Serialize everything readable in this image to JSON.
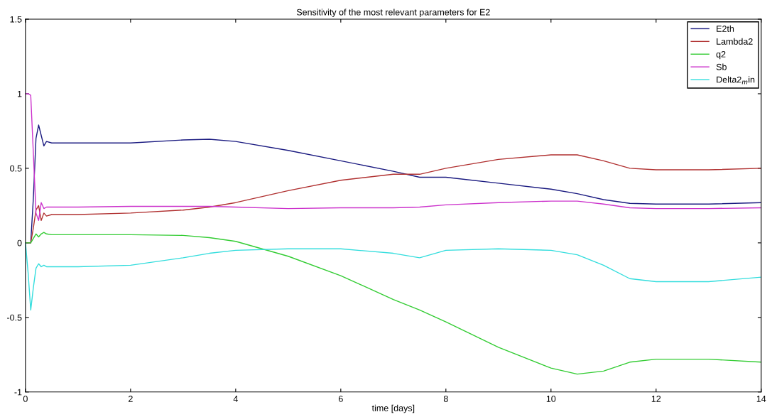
{
  "chart_data": {
    "type": "line",
    "title": "Sensitivity of the most relevant parameters for E2",
    "xlabel": "time [days]",
    "x": [
      0,
      0.05,
      0.1,
      0.15,
      0.2,
      0.25,
      0.3,
      0.35,
      0.4,
      0.5,
      1,
      2,
      3,
      3.5,
      4,
      5,
      6,
      7,
      7.5,
      8,
      9,
      10,
      10.5,
      11,
      11.5,
      12,
      13,
      14
    ],
    "series": [
      {
        "name": "E2th",
        "color": "#1a1a80",
        "values": [
          0,
          0,
          0,
          0.3,
          0.7,
          0.79,
          0.72,
          0.65,
          0.68,
          0.67,
          0.67,
          0.67,
          0.69,
          0.695,
          0.68,
          0.62,
          0.55,
          0.48,
          0.44,
          0.44,
          0.4,
          0.36,
          0.33,
          0.29,
          0.265,
          0.26,
          0.26,
          0.27
        ]
      },
      {
        "name": "Lambda2",
        "color": "#b03030",
        "values": [
          0,
          0,
          0,
          0.1,
          0.22,
          0.25,
          0.15,
          0.2,
          0.18,
          0.19,
          0.19,
          0.2,
          0.22,
          0.24,
          0.27,
          0.35,
          0.42,
          0.46,
          0.46,
          0.5,
          0.56,
          0.59,
          0.59,
          0.55,
          0.5,
          0.49,
          0.49,
          0.5
        ]
      },
      {
        "name": "q2",
        "color": "#33cc33",
        "values": [
          0,
          0,
          0,
          0.03,
          0.06,
          0.04,
          0.06,
          0.07,
          0.06,
          0.055,
          0.055,
          0.055,
          0.05,
          0.035,
          0.01,
          -0.09,
          -0.22,
          -0.38,
          -0.45,
          -0.53,
          -0.7,
          -0.84,
          -0.88,
          -0.86,
          -0.8,
          -0.78,
          -0.78,
          -0.8
        ]
      },
      {
        "name": "Sb",
        "color": "#cc33cc",
        "values": [
          1,
          1,
          0.99,
          0.6,
          0.2,
          0.15,
          0.27,
          0.23,
          0.24,
          0.24,
          0.24,
          0.245,
          0.245,
          0.245,
          0.24,
          0.23,
          0.235,
          0.235,
          0.24,
          0.255,
          0.27,
          0.28,
          0.28,
          0.26,
          0.235,
          0.23,
          0.23,
          0.235
        ]
      },
      {
        "name": "Delta2$_{m}$in",
        "color": "#33dddd",
        "values": [
          0,
          -0.2,
          -0.45,
          -0.3,
          -0.17,
          -0.14,
          -0.16,
          -0.15,
          -0.16,
          -0.16,
          -0.16,
          -0.15,
          -0.1,
          -0.07,
          -0.05,
          -0.04,
          -0.04,
          -0.07,
          -0.1,
          -0.05,
          -0.04,
          -0.05,
          -0.08,
          -0.15,
          -0.24,
          -0.26,
          -0.26,
          -0.23
        ]
      }
    ],
    "xlim": [
      0,
      14
    ],
    "xticks": [
      0,
      2,
      4,
      6,
      8,
      10,
      12,
      14
    ],
    "ylim": [
      -1,
      1.5
    ],
    "yticks": [
      -1,
      -0.5,
      0,
      0.5,
      1,
      1.5
    ],
    "grid": false,
    "legend": "top right",
    "line_style": "solid",
    "marker": "none"
  }
}
